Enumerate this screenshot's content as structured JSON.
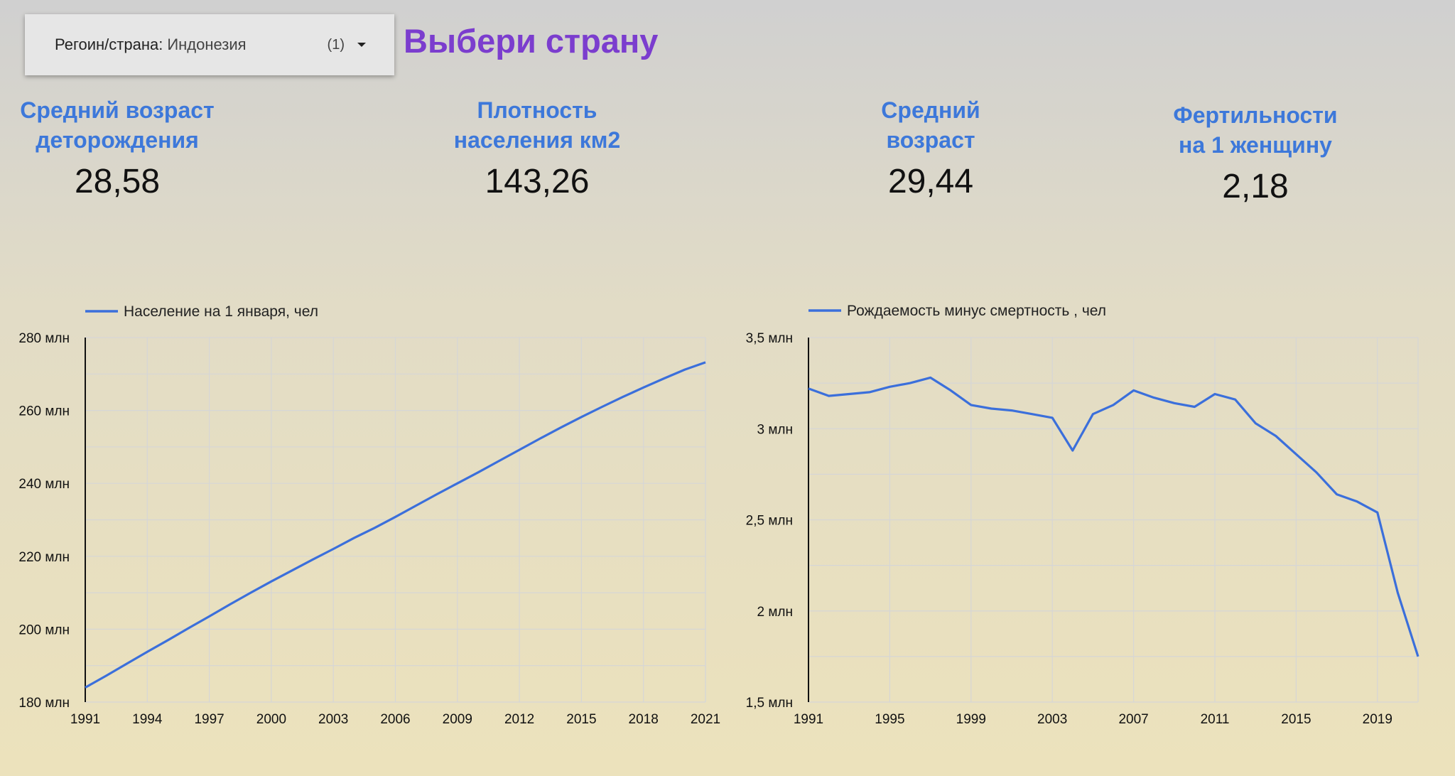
{
  "filter": {
    "label": "Регоин/страна:",
    "value": "Индонезия",
    "count": "(1)"
  },
  "page_title": "Выбери страну",
  "kpis": [
    {
      "title": "Средний возраст\nдеторождения",
      "value": "28,58"
    },
    {
      "title": "Плотность\nнаселения км2",
      "value": "143,26"
    },
    {
      "title": "Средний\nвозраст",
      "value": "29,44"
    },
    {
      "title": "Фертильности\nна 1 женщину",
      "value": "2,18"
    }
  ],
  "colors": {
    "title": "#7b3dce",
    "kpi_title": "#3d78da",
    "series": "#3b6fdb",
    "grid": "#d6d6d6"
  },
  "chart_data": [
    {
      "type": "line",
      "legend": "Население на 1 января, чел",
      "series": [
        {
          "name": "Население на 1 января, чел",
          "x": [
            1991,
            1992,
            1993,
            1994,
            1995,
            1996,
            1997,
            1998,
            1999,
            2000,
            2001,
            2002,
            2003,
            2004,
            2005,
            2006,
            2007,
            2008,
            2009,
            2010,
            2011,
            2012,
            2013,
            2014,
            2015,
            2016,
            2017,
            2018,
            2019,
            2020,
            2021
          ],
          "values": [
            184.0,
            187.2,
            190.5,
            193.8,
            197.0,
            200.3,
            203.5,
            206.8,
            210.0,
            213.1,
            216.1,
            219.1,
            222.0,
            225.0,
            227.8,
            230.8,
            233.9,
            237.0,
            240.0,
            243.0,
            246.1,
            249.2,
            252.3,
            255.3,
            258.2,
            261.0,
            263.7,
            266.3,
            268.8,
            271.2,
            273.2
          ]
        }
      ],
      "x_ticks": [
        "1991",
        "1994",
        "1997",
        "2000",
        "2003",
        "2006",
        "2009",
        "2012",
        "2015",
        "2018",
        "2021"
      ],
      "y_ticks": [
        "180 млн",
        "200 млн",
        "220 млн",
        "240 млн",
        "260 млн",
        "280 млн"
      ],
      "xlim": [
        1991,
        2021
      ],
      "ylim": [
        180,
        280
      ],
      "y_unit": "млн",
      "grid": true,
      "legend_position": "top-left"
    },
    {
      "type": "line",
      "legend": "Рождаемость минус смертность , чел",
      "series": [
        {
          "name": "Рождаемость минус смертность , чел",
          "x": [
            1991,
            1992,
            1993,
            1994,
            1995,
            1996,
            1997,
            1998,
            1999,
            2000,
            2001,
            2002,
            2003,
            2004,
            2005,
            2006,
            2007,
            2008,
            2009,
            2010,
            2011,
            2012,
            2013,
            2014,
            2015,
            2016,
            2017,
            2018,
            2019,
            2020,
            2021
          ],
          "values": [
            3.22,
            3.18,
            3.19,
            3.2,
            3.23,
            3.25,
            3.28,
            3.21,
            3.13,
            3.11,
            3.1,
            3.08,
            3.06,
            2.88,
            3.08,
            3.13,
            3.21,
            3.17,
            3.14,
            3.12,
            3.19,
            3.16,
            3.03,
            2.96,
            2.86,
            2.76,
            2.64,
            2.6,
            2.54,
            2.1,
            1.75
          ]
        }
      ],
      "x_ticks": [
        "1991",
        "1995",
        "1999",
        "2003",
        "2007",
        "2011",
        "2015",
        "2019"
      ],
      "y_ticks": [
        "1,5 млн",
        "2 млн",
        "2,5 млн",
        "3 млн",
        "3,5 млн"
      ],
      "xlim": [
        1991,
        2021
      ],
      "ylim": [
        1.5,
        3.5
      ],
      "y_unit": "млн",
      "grid": true,
      "legend_position": "top-left"
    }
  ]
}
